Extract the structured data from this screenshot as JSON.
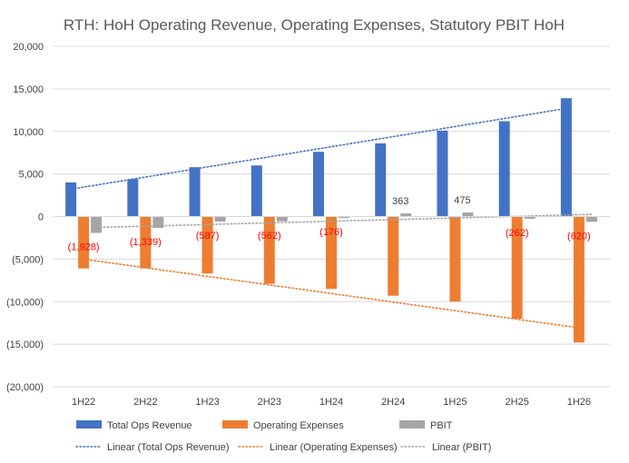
{
  "chart_data": {
    "type": "bar",
    "title": "RTH: HoH Operating Revenue, Operating Expenses, Statutory PBIT HoH",
    "xlabel": "",
    "ylabel": "",
    "categories": [
      "1H22",
      "2H22",
      "1H23",
      "2H23",
      "1H24",
      "2H24",
      "1H25",
      "2H25",
      "1H26"
    ],
    "ylim": [
      -20000,
      20000
    ],
    "yticks": [
      20000,
      15000,
      10000,
      5000,
      0,
      -5000,
      -10000,
      -15000,
      -20000
    ],
    "ytick_labels": [
      "20,000",
      "15,000",
      "10,000",
      "5,000",
      "0",
      "(5,000)",
      "(10,000)",
      "(15,000)",
      "(20,000)"
    ],
    "grid": true,
    "legend_position": "bottom",
    "series": [
      {
        "name": "Total Ops Revenue",
        "color": "#4472C4",
        "values": [
          4000,
          4400,
          5800,
          6000,
          7600,
          8600,
          10100,
          11200,
          13900
        ]
      },
      {
        "name": "Operating Expenses",
        "color": "#ED7D31",
        "values": [
          -6100,
          -6100,
          -6700,
          -7900,
          -8500,
          -9300,
          -10000,
          -12000,
          -14800
        ]
      },
      {
        "name": "PBIT",
        "color": "#A5A5A5",
        "values": [
          -1928,
          -1339,
          -587,
          -562,
          -176,
          363,
          475,
          -262,
          -620
        ],
        "data_labels": [
          "(1,928)",
          "(1,339)",
          "(587)",
          "(562)",
          "(176)",
          "363",
          "475",
          "(262)",
          "(620)"
        ]
      }
    ],
    "trendlines": [
      {
        "name": "Linear (Total Ops Revenue)",
        "series_index": 0,
        "color": "#4472C4",
        "style": "dotted"
      },
      {
        "name": "Linear (Operating Expenses)",
        "series_index": 1,
        "color": "#ED7D31",
        "style": "dotted"
      },
      {
        "name": "Linear (PBIT)",
        "series_index": 2,
        "color": "#A5A5A5",
        "style": "dotted"
      }
    ],
    "colors": {
      "negative_label": "#FF0000",
      "positive_label": "#404040",
      "grid": "#D9D9D9"
    }
  }
}
